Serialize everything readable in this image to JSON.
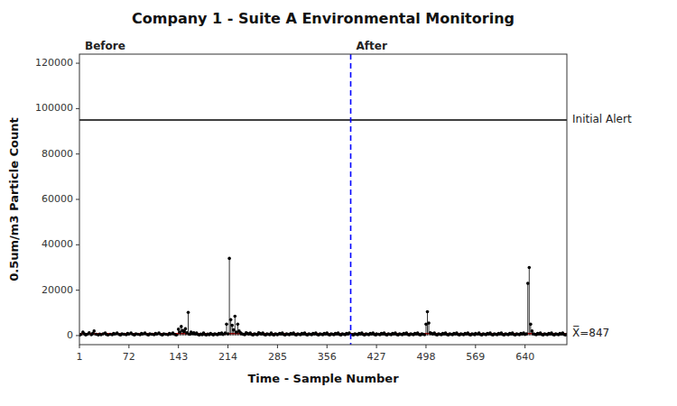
{
  "chart_data": {
    "type": "lollipop",
    "title": "Company 1 - Suite A Environmental Monitoring",
    "x_label": "Time - Sample Number",
    "y_label": "0.5um/m3 Particle Count",
    "color": "black",
    "grid": false,
    "xlim": [
      1,
      700
    ],
    "ylim": [
      -4000,
      124000
    ],
    "xticks": [
      1,
      72,
      143,
      214,
      285,
      356,
      427,
      498,
      569,
      640
    ],
    "yticks": [
      0,
      20000,
      40000,
      60000,
      80000,
      100000,
      120000
    ],
    "annotations": [
      {
        "type": "hline",
        "y": 847,
        "label": "X̅=847",
        "color": "red",
        "line_style": "solid"
      },
      {
        "type": "hline",
        "y": 95000,
        "label": "Initial Alert",
        "color": "black",
        "line_style": "solid"
      },
      {
        "type": "vline",
        "x": 390,
        "color": "blue",
        "line_style": "dashed",
        "before_label": "Before",
        "after_label": "After"
      }
    ],
    "x": [
      1,
      3,
      6,
      8,
      10,
      12,
      15,
      18,
      20,
      22,
      25,
      28,
      30,
      32,
      35,
      38,
      40,
      42,
      45,
      48,
      50,
      52,
      55,
      58,
      60,
      62,
      65,
      68,
      70,
      72,
      75,
      78,
      80,
      82,
      85,
      88,
      90,
      92,
      95,
      98,
      100,
      102,
      105,
      108,
      110,
      112,
      115,
      118,
      120,
      122,
      125,
      128,
      130,
      132,
      135,
      138,
      140,
      143,
      145,
      147,
      149,
      151,
      153,
      155,
      157,
      159,
      161,
      163,
      165,
      167,
      169,
      171,
      173,
      175,
      177,
      179,
      181,
      183,
      185,
      187,
      189,
      191,
      193,
      195,
      197,
      199,
      201,
      203,
      205,
      207,
      210,
      212,
      214,
      216,
      218,
      220,
      222,
      224,
      226,
      228,
      230,
      232,
      234,
      236,
      238,
      240,
      242,
      244,
      246,
      248,
      250,
      252,
      254,
      256,
      258,
      260,
      262,
      264,
      266,
      268,
      270,
      272,
      274,
      276,
      278,
      280,
      282,
      284,
      285,
      288,
      290,
      292,
      294,
      296,
      298,
      300,
      302,
      304,
      306,
      308,
      310,
      312,
      314,
      316,
      318,
      320,
      322,
      324,
      326,
      328,
      330,
      332,
      334,
      336,
      338,
      340,
      342,
      344,
      346,
      348,
      350,
      352,
      354,
      356,
      358,
      360,
      362,
      364,
      366,
      368,
      370,
      372,
      374,
      376,
      378,
      380,
      382,
      384,
      386,
      388,
      392,
      394,
      396,
      398,
      400,
      402,
      404,
      406,
      408,
      410,
      412,
      414,
      416,
      418,
      420,
      422,
      424,
      426,
      427,
      430,
      432,
      434,
      436,
      438,
      440,
      442,
      444,
      446,
      448,
      450,
      452,
      454,
      456,
      458,
      460,
      462,
      464,
      466,
      468,
      470,
      472,
      474,
      476,
      478,
      480,
      482,
      484,
      486,
      488,
      490,
      492,
      494,
      496,
      498,
      500,
      502,
      504,
      506,
      508,
      510,
      512,
      514,
      516,
      518,
      520,
      522,
      524,
      526,
      528,
      530,
      532,
      534,
      536,
      538,
      540,
      542,
      544,
      546,
      548,
      550,
      552,
      554,
      556,
      558,
      560,
      562,
      564,
      566,
      568,
      569,
      572,
      574,
      576,
      578,
      580,
      582,
      584,
      586,
      588,
      590,
      592,
      594,
      596,
      598,
      600,
      602,
      604,
      606,
      608,
      610,
      612,
      614,
      616,
      618,
      620,
      622,
      624,
      626,
      628,
      630,
      632,
      634,
      636,
      638,
      640,
      642,
      644,
      646,
      648,
      650,
      652,
      654,
      656,
      658,
      660,
      662,
      664,
      666,
      668,
      670,
      672,
      674,
      676,
      678,
      680,
      682,
      684,
      686,
      688,
      690,
      692,
      694,
      696,
      698,
      700
    ],
    "values": [
      200,
      500,
      1500,
      800,
      300,
      600,
      1200,
      400,
      900,
      2000,
      600,
      300,
      700,
      400,
      800,
      1100,
      500,
      300,
      600,
      400,
      900,
      700,
      1100,
      500,
      300,
      800,
      600,
      400,
      900,
      700,
      1100,
      500,
      300,
      800,
      600,
      400,
      900,
      700,
      1100,
      500,
      300,
      800,
      600,
      400,
      900,
      700,
      1100,
      500,
      300,
      800,
      600,
      400,
      900,
      700,
      1100,
      500,
      300,
      2800,
      1500,
      4000,
      2200,
      1800,
      3000,
      1200,
      10200,
      600,
      1500,
      900,
      1200,
      700,
      1100,
      500,
      300,
      700,
      400,
      1100,
      500,
      300,
      700,
      400,
      900,
      600,
      300,
      800,
      600,
      400,
      900,
      700,
      1100,
      500,
      1100,
      5000,
      800,
      34000,
      7000,
      4500,
      2500,
      8500,
      1500,
      5000,
      2000,
      1200,
      800,
      600,
      400,
      1200,
      900,
      700,
      1100,
      500,
      300,
      800,
      600,
      400,
      1200,
      900,
      700,
      1100,
      500,
      300,
      800,
      600,
      400,
      1100,
      500,
      300,
      800,
      600,
      400,
      900,
      700,
      1100,
      500,
      300,
      800,
      600,
      400,
      900,
      700,
      1100,
      500,
      300,
      800,
      600,
      400,
      900,
      700,
      1100,
      500,
      300,
      800,
      600,
      400,
      900,
      700,
      1100,
      500,
      300,
      800,
      600,
      400,
      900,
      700,
      1100,
      500,
      300,
      800,
      600,
      400,
      900,
      700,
      1100,
      500,
      300,
      800,
      600,
      400,
      900,
      700,
      1100,
      500,
      300,
      800,
      600,
      400,
      900,
      700,
      1100,
      500,
      300,
      800,
      600,
      400,
      900,
      700,
      1100,
      500,
      300,
      800,
      600,
      400,
      900,
      700,
      1100,
      500,
      300,
      800,
      600,
      400,
      900,
      700,
      1100,
      500,
      300,
      800,
      600,
      400,
      900,
      700,
      1100,
      500,
      300,
      800,
      600,
      400,
      900,
      700,
      1100,
      500,
      300,
      800,
      600,
      400,
      5000,
      10500,
      5500,
      1200,
      900,
      700,
      1100,
      500,
      300,
      800,
      600,
      400,
      900,
      700,
      1100,
      500,
      300,
      800,
      600,
      400,
      900,
      700,
      1100,
      500,
      300,
      800,
      600,
      400,
      900,
      700,
      1100,
      500,
      300,
      800,
      600,
      400,
      900,
      700,
      1100,
      500,
      300,
      800,
      600,
      400,
      900,
      700,
      1100,
      500,
      300,
      800,
      600,
      400,
      900,
      700,
      1100,
      500,
      300,
      800,
      600,
      400,
      900,
      700,
      1100,
      500,
      300,
      800,
      600,
      400,
      900,
      700,
      1100,
      500,
      800,
      23000,
      30000,
      5000,
      2000,
      800,
      600,
      400,
      900,
      700,
      1100,
      500,
      300,
      800,
      600,
      400,
      900,
      700,
      1100,
      500,
      300,
      800,
      600,
      400,
      900,
      700,
      1100,
      500,
      300,
      600
    ]
  }
}
